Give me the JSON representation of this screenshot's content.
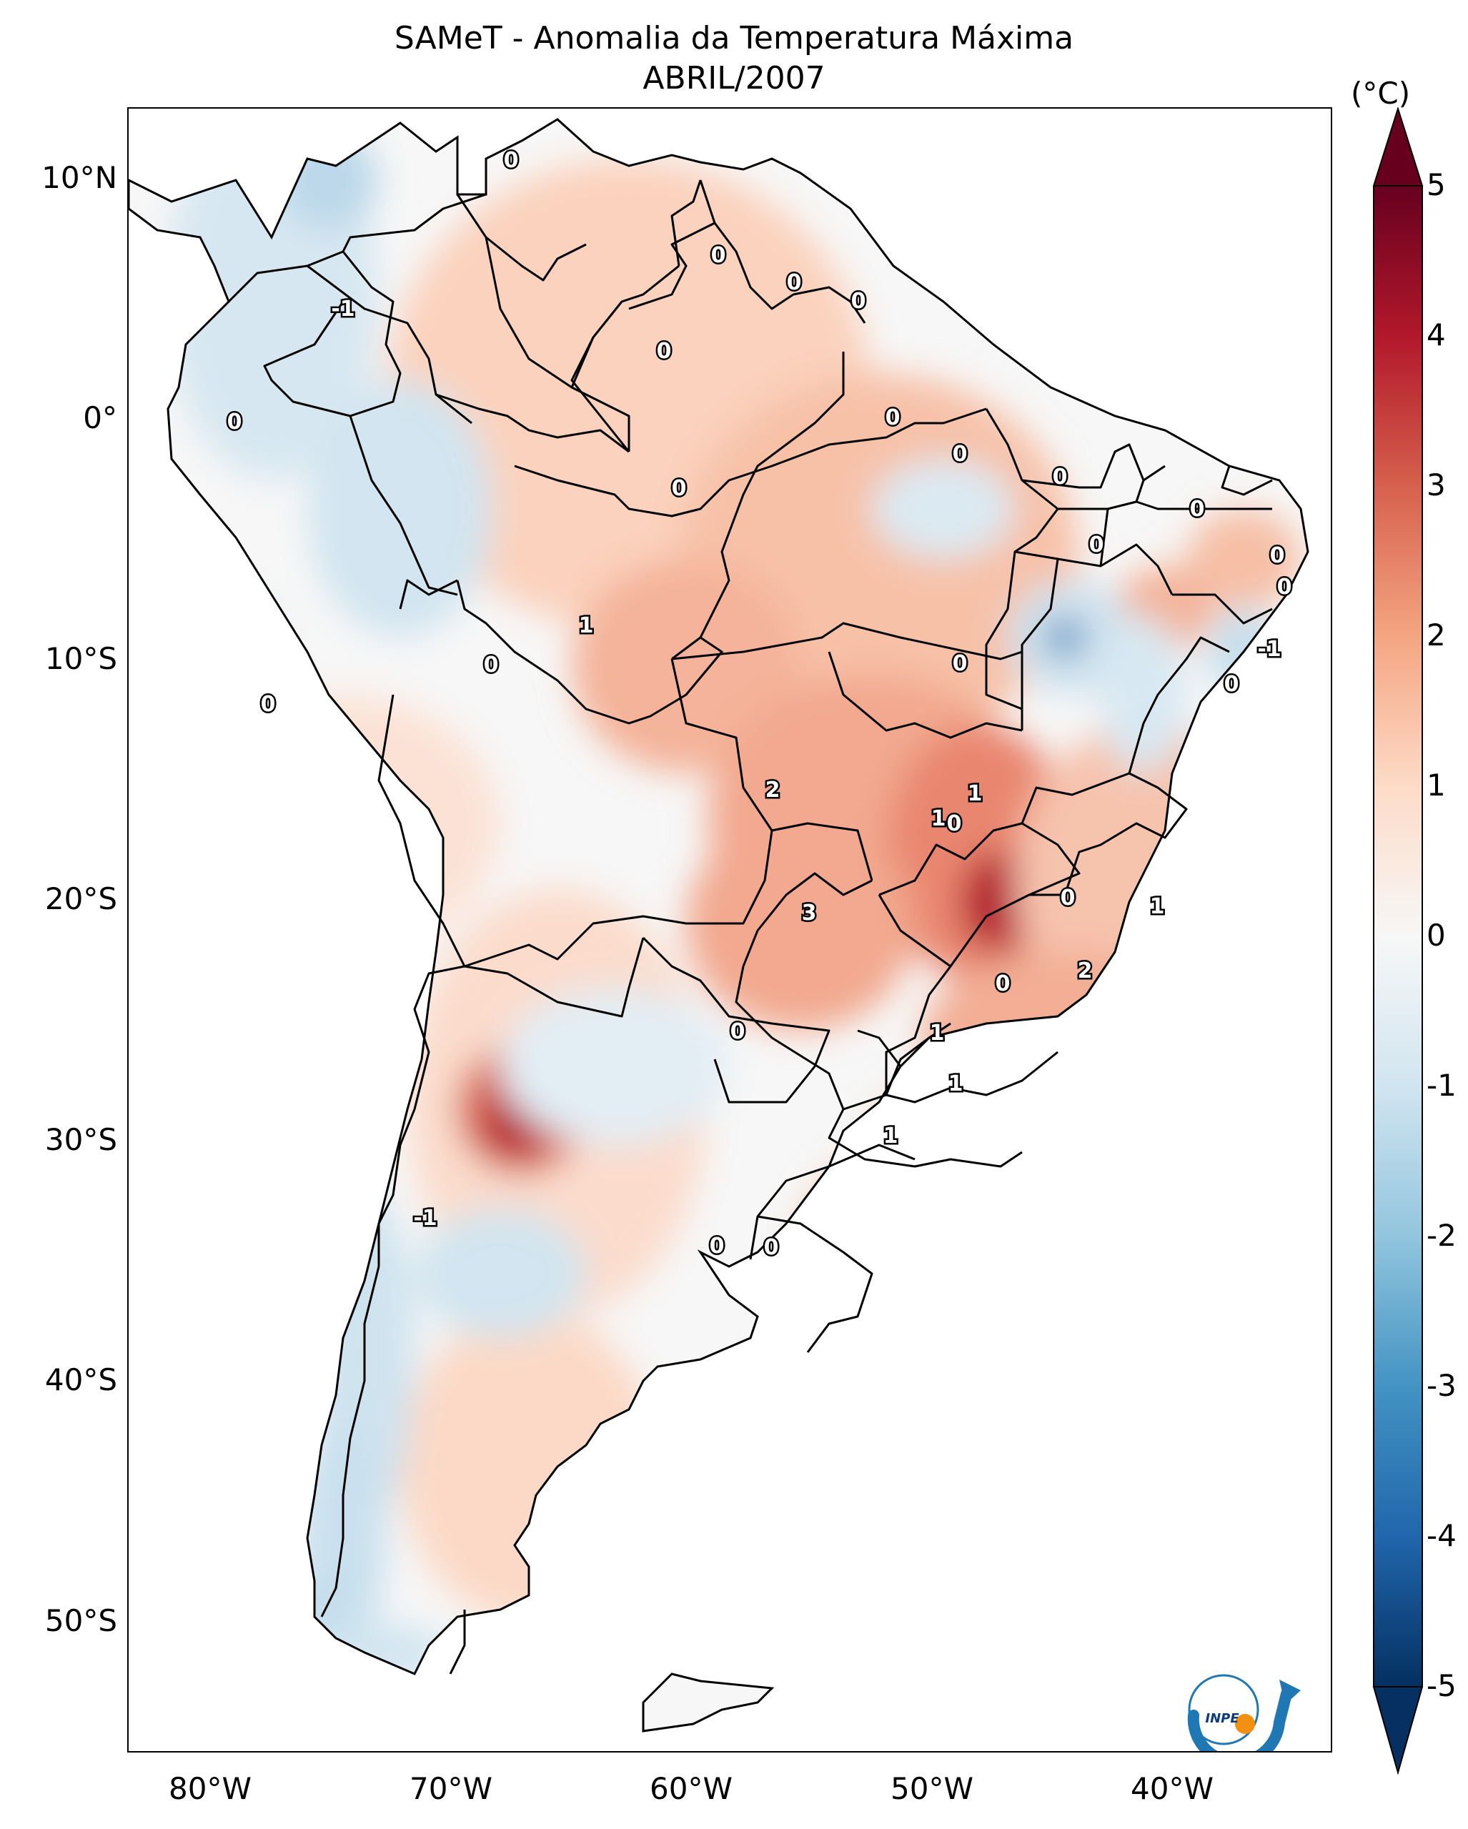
{
  "title": "SAMeT - Anomalia da Temperatura Máxima",
  "subtitle": "ABRIL/2007",
  "colorbar": {
    "unit": "(°C)",
    "ticks": [
      "5",
      "4",
      "3",
      "2",
      "1",
      "0",
      "-1",
      "-2",
      "-3",
      "-4",
      "-5"
    ],
    "range": [
      -5,
      5
    ],
    "colormap": [
      "#053061",
      "#2166ac",
      "#4393c3",
      "#92c5de",
      "#d1e5f0",
      "#f7f7f7",
      "#fddbc7",
      "#f4a582",
      "#d6604d",
      "#b2182b",
      "#67001f"
    ]
  },
  "axes": {
    "lat_labels": [
      "10°N",
      "0°",
      "10°S",
      "20°S",
      "30°S",
      "40°S",
      "50°S"
    ],
    "lon_labels": [
      "80°W",
      "70°W",
      "60°W",
      "50°W",
      "40°W"
    ],
    "lon_range": [
      -83,
      -33
    ],
    "lat_range": [
      -56,
      13
    ]
  },
  "contour_labels": [
    "0",
    "0",
    "0",
    "0",
    "-1",
    "0",
    "0",
    "0",
    "0",
    "0",
    "0",
    "0",
    "0",
    "0",
    "0",
    "-1",
    "1",
    "0",
    "0",
    "0",
    "0",
    "2",
    "1",
    "1",
    "3",
    "0",
    "1",
    "0",
    "2",
    "0",
    "1",
    "1",
    "1",
    "-1",
    "0",
    "0",
    "0"
  ],
  "logo_text": "INPE"
}
